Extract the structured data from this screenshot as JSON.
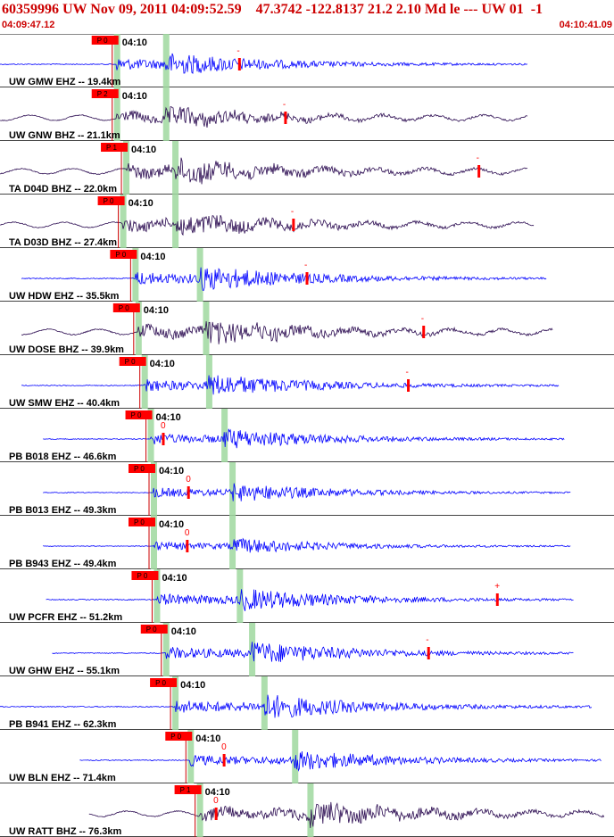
{
  "header": {
    "title": "60359996 UW Nov 09, 2011 04:09:52.59    47.3742 -122.8137 21.2 2.10 Md le --- UW 01  -1",
    "time_start": "04:09:47.12",
    "time_end": "04:10:41.09"
  },
  "colors": {
    "header_text": "#cc0000",
    "blue_trace": "#0000ff",
    "dark_trace": "#2a0a50",
    "pick_box": "#ff0000",
    "shade": "#9fd89f",
    "label_text": "#000000"
  },
  "chart_data": {
    "type": "line",
    "title": "60359996 UW Nov 09, 2011 04:09:52.59    47.3742 -122.8137 21.2 2.10 Md le --- UW 01  -1",
    "x_range": [
      "04:09:47.12",
      "04:10:41.09"
    ],
    "tick_label": "04:10",
    "series": [
      {
        "name": "UW GMW EHZ -- 19.4km",
        "color": "blue",
        "pick": "P 0",
        "coda": "-",
        "t_start": 0.0,
        "t_end": 0.86,
        "p": 0.19,
        "s": 0.27,
        "amp": 0.5,
        "coda_t": 0.39
      },
      {
        "name": "UW GNW BHZ -- 21.1km",
        "color": "dark",
        "pick": "P 2",
        "coda": "-",
        "t_start": 0.0,
        "t_end": 0.86,
        "p": 0.19,
        "s": 0.27,
        "amp": 0.45,
        "coda_t": 0.465
      },
      {
        "name": "TA D04D BHZ -- 22.0km",
        "color": "dark",
        "pick": "P 1",
        "coda": "-",
        "t_start": 0.0,
        "t_end": 0.86,
        "p": 0.205,
        "s": 0.285,
        "amp": 0.55,
        "coda_t": 0.78
      },
      {
        "name": "TA D03D BHZ -- 27.4km",
        "color": "dark",
        "pick": "P 0",
        "coda": "-",
        "t_start": 0.0,
        "t_end": 0.87,
        "p": 0.2,
        "s": 0.285,
        "amp": 0.5,
        "coda_t": 0.478
      },
      {
        "name": "UW HDW EHZ -- 35.5km",
        "color": "blue",
        "pick": "P 0",
        "coda": "-",
        "t_start": 0.035,
        "t_end": 0.89,
        "p": 0.22,
        "s": 0.325,
        "amp": 0.55,
        "coda_t": 0.5
      },
      {
        "name": "UW DOSE BHZ -- 39.9km",
        "color": "dark",
        "pick": "P 0",
        "coda": "-",
        "t_start": 0.035,
        "t_end": 0.9,
        "p": 0.225,
        "s": 0.335,
        "amp": 0.55,
        "coda_t": 0.69
      },
      {
        "name": "UW SMW EHZ -- 40.4km",
        "color": "blue",
        "pick": "P 0",
        "coda": "-",
        "t_start": 0.035,
        "t_end": 0.91,
        "p": 0.235,
        "s": 0.34,
        "amp": 0.5,
        "coda_t": 0.665
      },
      {
        "name": "PB B018 EHZ -- 46.6km",
        "color": "blue",
        "pick": "P 0",
        "coda": "0",
        "t_start": 0.07,
        "t_end": 0.92,
        "p": 0.245,
        "s": 0.365,
        "amp": 0.45,
        "coda_t": 0.266
      },
      {
        "name": "PB B013 EHZ -- 49.3km",
        "color": "blue",
        "pick": "P 0",
        "coda": "0",
        "t_start": 0.07,
        "t_end": 0.93,
        "p": 0.25,
        "s": 0.378,
        "amp": 0.4,
        "coda_t": 0.307
      },
      {
        "name": "PB B943 EHZ -- 49.4km",
        "color": "blue",
        "pick": "P 0",
        "coda": "0",
        "t_start": 0.07,
        "t_end": 0.93,
        "p": 0.25,
        "s": 0.378,
        "amp": 0.35,
        "coda_t": 0.305
      },
      {
        "name": "UW PCFR EHZ -- 51.2km",
        "color": "blue",
        "pick": "P 0",
        "coda": "+",
        "t_start": 0.075,
        "t_end": 0.935,
        "p": 0.255,
        "s": 0.39,
        "amp": 0.5,
        "coda_t": 0.81
      },
      {
        "name": "UW GHW EHZ -- 55.1km",
        "color": "blue",
        "pick": "P 0",
        "coda": "-",
        "t_start": 0.085,
        "t_end": 0.935,
        "p": 0.27,
        "s": 0.41,
        "amp": 0.5,
        "coda_t": 0.698
      },
      {
        "name": "PB B941 EHZ -- 62.3km",
        "color": "blue",
        "pick": "P 0",
        "coda": "",
        "t_start": 0.0,
        "t_end": 0.965,
        "p": 0.285,
        "s": 0.43,
        "amp": 0.55,
        "coda_t": 0
      },
      {
        "name": "UW BLN EHZ -- 71.4km",
        "color": "blue",
        "pick": "P 0",
        "coda": "0",
        "t_start": 0.13,
        "t_end": 0.98,
        "p": 0.31,
        "s": 0.48,
        "amp": 0.45,
        "coda_t": 0.365
      },
      {
        "name": "UW RATT BHZ -- 76.3km",
        "color": "dark",
        "pick": "P 1",
        "coda": "0",
        "t_start": 0.145,
        "t_end": 0.985,
        "p": 0.325,
        "s": 0.505,
        "amp": 0.55,
        "coda_t": 0.352
      }
    ]
  }
}
